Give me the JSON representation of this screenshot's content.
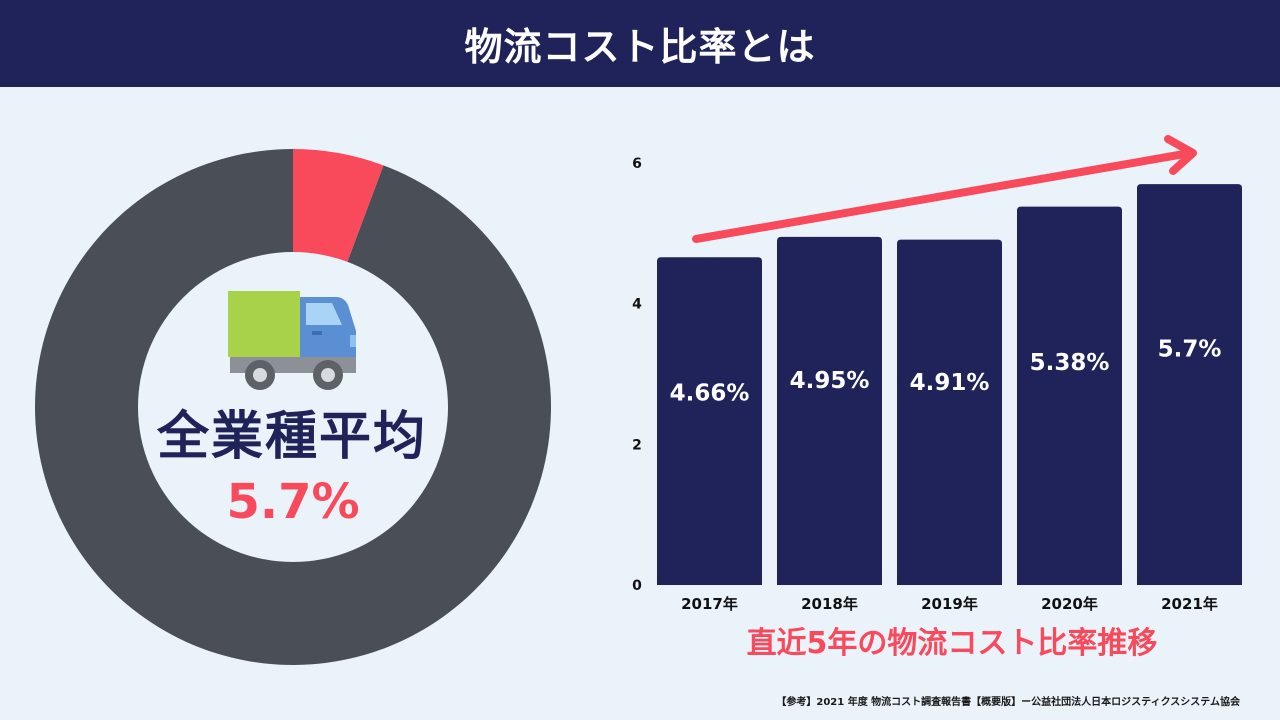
{
  "header": {
    "title": "物流コスト比率とは"
  },
  "donut": {
    "center_label": "全業種平均",
    "center_value": "5.7%",
    "icon": "truck-icon",
    "percent": 5.7,
    "colors": {
      "highlight": "#f94a5c",
      "rest": "#4a4f57",
      "center": "#eaf2fa",
      "label": "#1f235a"
    }
  },
  "chart_data": {
    "type": "bar",
    "title": "直近5年の物流コスト比率推移",
    "categories": [
      "2017年",
      "2018年",
      "2019年",
      "2020年",
      "2021年"
    ],
    "values": [
      4.66,
      4.95,
      4.91,
      5.38,
      5.7
    ],
    "data_labels": [
      "4.66%",
      "4.95%",
      "4.91%",
      "5.38%",
      "5.7%"
    ],
    "ylim": [
      0,
      6
    ],
    "y_ticks": [
      0,
      2,
      4,
      6
    ],
    "grid": false,
    "trend_arrow": true,
    "colors": {
      "bar": "#1f235a",
      "label": "#ffffff",
      "arrow": "#f94a5c",
      "title": "#f94a5c"
    }
  },
  "footnote": "【参考】2021 年度 物流コスト調査報告書【概要版】ー公益社団法人日本ロジスティクスシステム協会"
}
